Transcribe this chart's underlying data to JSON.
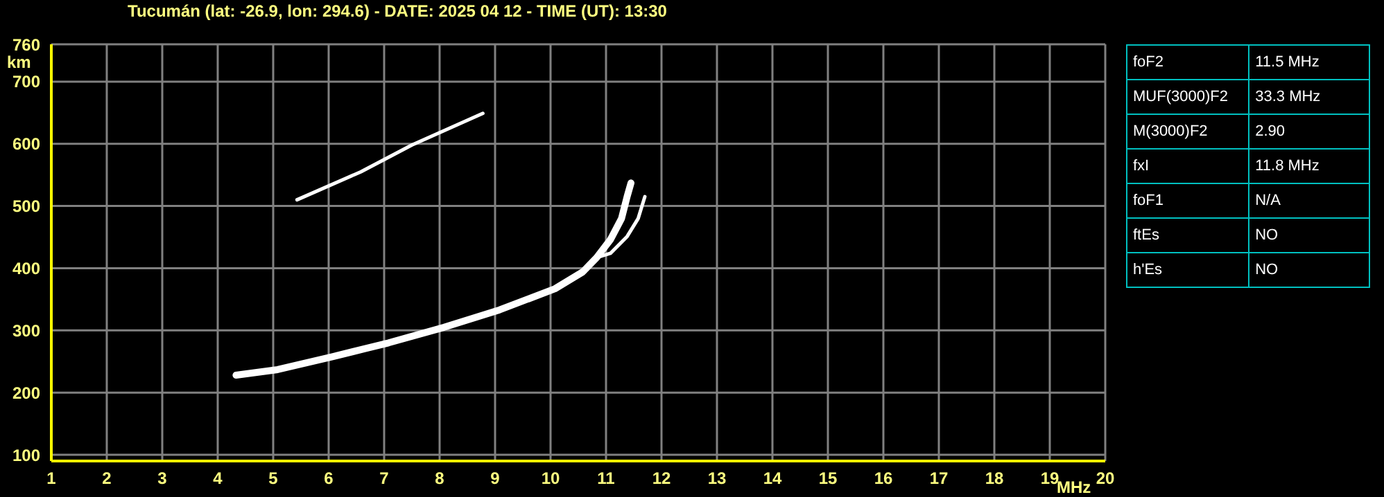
{
  "chart_data": [
    {
      "type": "line",
      "title": "Tucumán (lat: -26.9, lon: 294.6) - DATE: 2025 04 12 - TIME (UT): 13:30",
      "xlabel": "MHz",
      "ylabel": "km",
      "xlim": [
        1,
        20
      ],
      "xticks": [
        1,
        2,
        3,
        4,
        5,
        6,
        7,
        8,
        9,
        10,
        11,
        12,
        13,
        14,
        15,
        16,
        17,
        18,
        19,
        20
      ],
      "ylim": [
        90,
        760
      ],
      "yticks": [
        100,
        200,
        300,
        400,
        500,
        600,
        700,
        760
      ],
      "grid": true,
      "marker": "none",
      "line_style": "solid",
      "series": [
        {
          "color": "#ffffff",
          "x": [
            4.33,
            5.08,
            6.08,
            7.08,
            8.08,
            9.08,
            10.08,
            10.58,
            10.83,
            11.08,
            11.28,
            11.38,
            11.45
          ],
          "values": [
            228,
            237,
            258,
            280,
            305,
            333,
            367,
            394,
            417,
            446,
            480,
            515,
            537
          ]
        },
        {
          "color": "#ffffff",
          "x": [
            10.83,
            11.08,
            11.38,
            11.58,
            11.7
          ],
          "values": [
            417,
            424,
            451,
            480,
            515
          ]
        },
        {
          "color": "#ffffff",
          "x": [
            5.43,
            6.58,
            7.5,
            8.78
          ],
          "values": [
            510,
            555,
            598,
            649
          ]
        }
      ]
    },
    {
      "type": "other",
      "annotations": [
        "foF2",
        "11.5 MHz",
        "MUF(3000)F2",
        "33.3 MHz",
        "M(3000)F2",
        "2.90",
        "fxI",
        "11.8 MHz",
        "foF1",
        "N/A",
        "ftEs",
        "NO",
        "h'Es",
        "NO"
      ]
    }
  ]
}
